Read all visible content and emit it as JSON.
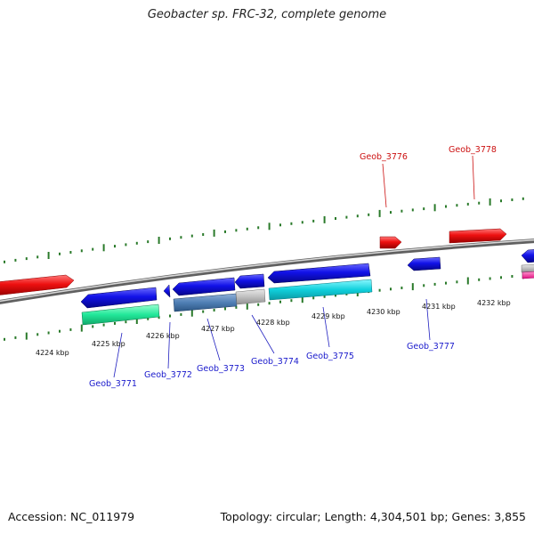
{
  "title": "Geobacter sp. FRC-32, complete genome",
  "footer": {
    "accession": "Accession: NC_011979",
    "topology": "Topology: circular; Length: 4,304,501 bp; Genes: 3,855"
  },
  "scale_labels": [
    "4224 kbp",
    "4225 kbp",
    "4226 kbp",
    "4227 kbp",
    "4228 kbp",
    "4229 kbp",
    "4230 kbp",
    "4231 kbp",
    "4232 kbp"
  ],
  "genes_blue": [
    "Geob_3771",
    "Geob_3772",
    "Geob_3773",
    "Geob_3774",
    "Geob_3775",
    "Geob_3777"
  ],
  "genes_red": [
    "Geob_3776",
    "Geob_3778"
  ],
  "colors": {
    "forward_gene": "#e01010",
    "reverse_gene": "#1010d8",
    "label_blue": "#1a1acc",
    "label_red": "#cc1111",
    "ticks": "#2a7a2a",
    "backbone": "#808080"
  }
}
